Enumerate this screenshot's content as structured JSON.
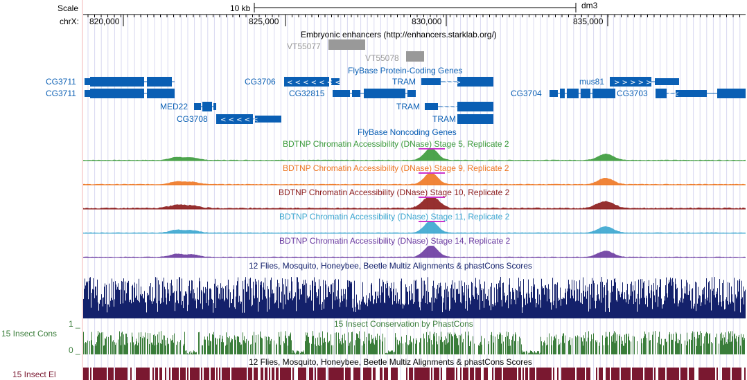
{
  "ruler": {
    "scale_label": "Scale",
    "chrom_label": "chrX:",
    "scalebar_label": "10 kb",
    "assembly": "dm3",
    "ticks": [
      "820,000",
      "825,000",
      "830,000",
      "835,000"
    ]
  },
  "side_labels": {
    "insect_cons": "15 Insect Cons",
    "insect_el": "15 Insect El",
    "axis_max": "1 _",
    "axis_min": "0 _"
  },
  "tracks": {
    "enhancers": {
      "title": "Embryonic enhancers (http://enhancers.starklab.org/)",
      "items": [
        "VT55077",
        "VT55078"
      ]
    },
    "flybase_coding": {
      "title": "FlyBase Protein-Coding Genes",
      "genes": {
        "cg3711_a": "CG3711",
        "cg3711_b": "CG3711",
        "cg3706": "CG3706",
        "cg32815": "CG32815",
        "med22": "MED22",
        "cg3708": "CG3708",
        "tram_a": "TRAM",
        "tram_b": "TRAM",
        "tram_c": "TRAM",
        "cg3704": "CG3704",
        "mus81": "mus81",
        "cg3703": "CG3703"
      }
    },
    "flybase_noncoding": {
      "title": "FlyBase Noncoding Genes"
    },
    "dnase": [
      {
        "title": "BDTNP Chromatin Accessibility (DNase) Stage 5, Replicate 2",
        "color": "#3a9a3a"
      },
      {
        "title": "BDTNP Chromatin Accessibility (DNase) Stage 9, Replicate 2",
        "color": "#ee7722"
      },
      {
        "title": "BDTNP Chromatin Accessibility (DNase) Stage 10, Replicate 2",
        "color": "#8b1a1a"
      },
      {
        "title": "BDTNP Chromatin Accessibility (DNase) Stage 11, Replicate 2",
        "color": "#3aa6cf"
      },
      {
        "title": "BDTNP Chromatin Accessibility (DNase) Stage 14, Replicate 2",
        "color": "#6a3aa0"
      }
    ],
    "multiz": {
      "title": "12 Flies, Mosquito, Honeybee, Beetle Multiz Alignments & phastCons Scores"
    },
    "phastcons": {
      "title": "15 Insect Conservation by PhastCons"
    },
    "elements": {
      "title": "12 Flies, Mosquito, Honeybee, Beetle Multiz Alignments & phastCons Scores"
    }
  },
  "colors": {
    "gene": "#0a5fb4",
    "enhancer": "#999999",
    "multiz": "#14216b",
    "phastcons": "#3a7d3a",
    "elements": "#7a1830",
    "overflow": "#cc33cc",
    "window_line": "#d8d8f0"
  }
}
